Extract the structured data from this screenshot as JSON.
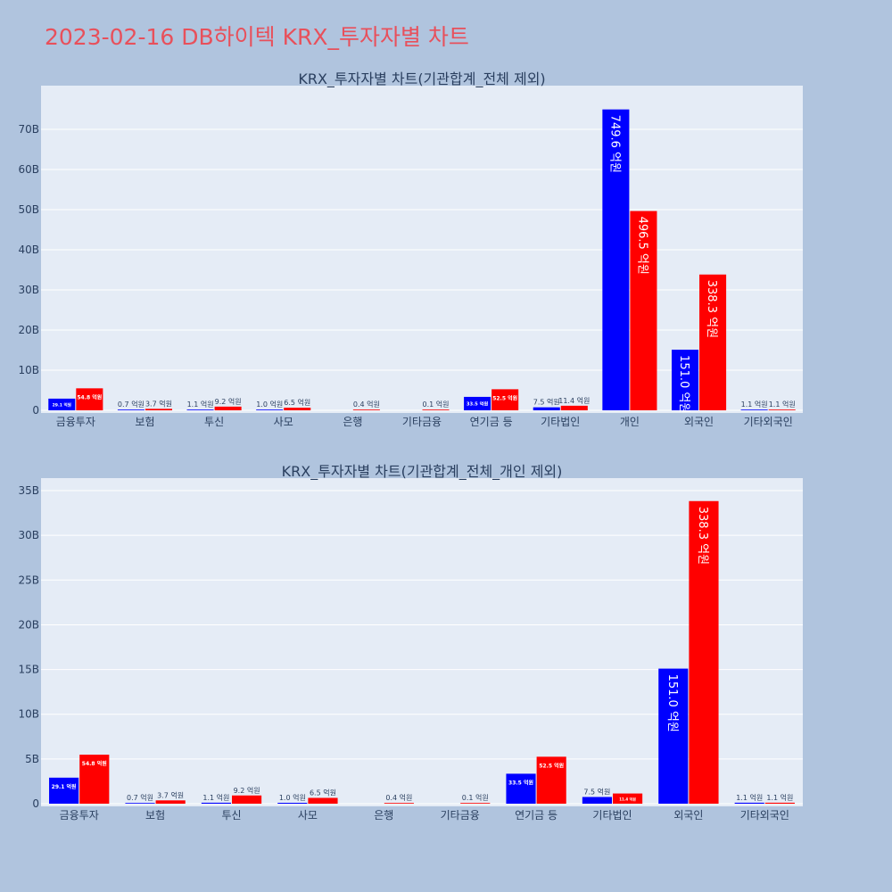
{
  "title": "2023-02-16 DB하이텍 KRX_투자자별 차트",
  "colors": {
    "background": "#b0c4de",
    "plot_bg": "#e5ecf6",
    "title": "#e8505b",
    "buy": "#0000ff",
    "sell": "#ff0000"
  },
  "chart_data": [
    {
      "type": "bar",
      "title": "KRX_투자자별 차트(기관합계_전체 제외)",
      "categories": [
        "금융투자",
        "보험",
        "투신",
        "사모",
        "은행",
        "기타금융",
        "연기금 등",
        "기타법인",
        "개인",
        "외국인",
        "기타외국인"
      ],
      "series": [
        {
          "values": [
            2.91,
            0.07,
            0.11,
            0.1,
            0,
            0,
            3.35,
            0.75,
            74.96,
            15.1,
            0.11
          ],
          "labels": [
            "29.1 억원",
            "0.7 억원",
            "1.1 억원",
            "1.0 억원",
            "",
            "",
            "33.5 억원",
            "7.5 억원",
            "749.6 억원",
            "151.0 억원",
            "1.1 억원"
          ]
        },
        {
          "values": [
            5.48,
            0.37,
            0.92,
            0.65,
            0.04,
            0.01,
            5.25,
            1.14,
            49.65,
            33.83,
            0.11
          ],
          "labels": [
            "54.8 억원",
            "3.7 억원",
            "9.2 억원",
            "6.5 억원",
            "0.4 억원",
            "0.1 억원",
            "52.5 억원",
            "11.4 억원",
            "496.5 억원",
            "338.3 억원",
            "1.1 억원"
          ]
        }
      ],
      "yticks": [
        "0",
        "10B",
        "20B",
        "30B",
        "40B",
        "50B",
        "60B",
        "70B"
      ],
      "ylim": [
        0,
        80
      ],
      "y_unit": "B"
    },
    {
      "type": "bar",
      "title": "KRX_투자자별 차트(기관합계_전체_개인 제외)",
      "categories": [
        "금융투자",
        "보험",
        "투신",
        "사모",
        "은행",
        "기타금융",
        "연기금 등",
        "기타법인",
        "외국인",
        "기타외국인"
      ],
      "series": [
        {
          "values": [
            2.91,
            0.07,
            0.11,
            0.1,
            0,
            0,
            3.35,
            0.75,
            15.1,
            0.11
          ],
          "labels": [
            "29.1 억원",
            "0.7 억원",
            "1.1 억원",
            "1.0 억원",
            "",
            "",
            "33.5 억원",
            "7.5 억원",
            "151.0 억원",
            "1.1 억원"
          ]
        },
        {
          "values": [
            5.48,
            0.37,
            0.92,
            0.65,
            0.04,
            0.01,
            5.25,
            1.14,
            33.83,
            0.11
          ],
          "labels": [
            "54.8 억원",
            "3.7 억원",
            "9.2 억원",
            "6.5 억원",
            "0.4 억원",
            "0.1 억원",
            "52.5 억원",
            "11.4 억원",
            "338.3 억원",
            "1.1 억원"
          ]
        }
      ],
      "yticks": [
        "0",
        "5B",
        "10B",
        "15B",
        "20B",
        "25B",
        "30B",
        "35B"
      ],
      "ylim": [
        0,
        36
      ],
      "y_unit": "B"
    }
  ]
}
